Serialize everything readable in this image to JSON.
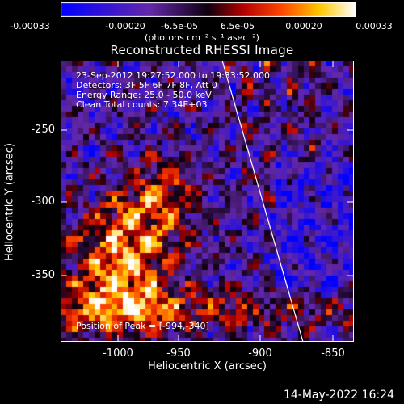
{
  "colorbar": {
    "ticks": [
      "-0.00033",
      "-0.00020",
      "-6.5e-05",
      "6.5e-05",
      "0.00020",
      "0.00033"
    ],
    "units": "(photons cm⁻² s⁻¹ asec⁻²)"
  },
  "title": "Reconstructed RHESSI Image",
  "info": {
    "time_range": "23-Sep-2012 19:27:52.000 to 19:33:52.000",
    "detectors": "Detectors: 3F 5F 6F 7F 8F, Att 0",
    "energy": "Energy Range: 25.0 - 50.0 keV",
    "method": "Clean    Total counts: 7.34E+03",
    "peak": "Position of Peak = [-994,-340]"
  },
  "axes": {
    "xlabel": "Heliocentric X (arcsec)",
    "ylabel": "Heliocentric Y (arcsec)",
    "xticks": [
      "-1000",
      "-950",
      "-900",
      "-850"
    ],
    "yticks": [
      "-250",
      "-300",
      "-350"
    ]
  },
  "timestamp": "14-May-2022 16:24"
}
